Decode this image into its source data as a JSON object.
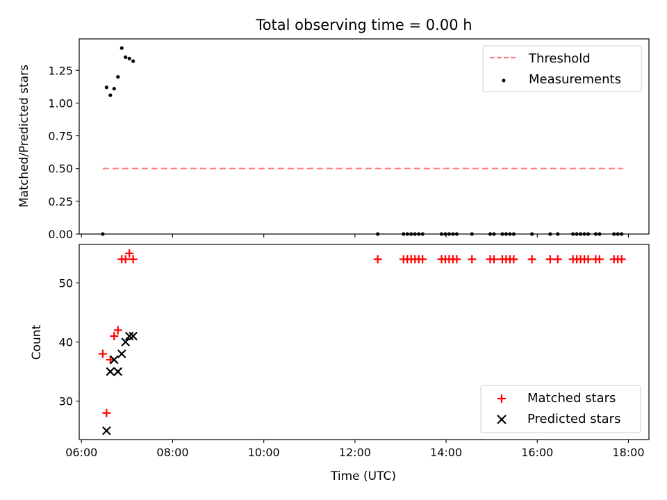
{
  "chart_data": [
    {
      "type": "scatter",
      "title": "Total observing time = 0.00 h",
      "ylabel": "Matched/Predicted stars",
      "ylim": [
        0,
        1.49
      ],
      "yticks": [
        "0.00",
        "0.25",
        "0.50",
        "0.75",
        "1.00",
        "1.25"
      ],
      "xlim_hours": [
        5.95,
        18.45
      ],
      "legend": {
        "position": "top-right",
        "entries": [
          "Threshold",
          "Measurements"
        ]
      },
      "series": [
        {
          "name": "Threshold",
          "style": "dashed-line",
          "color": "#ff7f7f",
          "x": [
            "06:28",
            "17:53"
          ],
          "y": [
            0.5,
            0.5
          ]
        },
        {
          "name": "Measurements",
          "style": "dot",
          "color": "#000000",
          "x": [
            "06:28",
            "06:33",
            "06:38",
            "06:43",
            "06:48",
            "06:53",
            "06:58",
            "07:03",
            "07:08",
            "12:30",
            "13:04",
            "13:09",
            "13:14",
            "13:19",
            "13:24",
            "13:29",
            "13:54",
            "13:59",
            "14:04",
            "14:09",
            "14:14",
            "14:34",
            "14:58",
            "15:03",
            "15:14",
            "15:19",
            "15:24",
            "15:29",
            "15:53",
            "16:17",
            "16:27",
            "16:47",
            "16:52",
            "16:57",
            "17:02",
            "17:07",
            "17:17",
            "17:22",
            "17:41",
            "17:46",
            "17:51"
          ],
          "y": [
            0.0,
            1.12,
            1.06,
            1.11,
            1.2,
            1.42,
            1.35,
            1.34,
            1.32,
            0,
            0,
            0,
            0,
            0,
            0,
            0,
            0,
            0,
            0,
            0,
            0,
            0,
            0,
            0,
            0,
            0,
            0,
            0,
            0,
            0,
            0,
            0,
            0,
            0,
            0,
            0,
            0,
            0,
            0,
            0,
            0
          ]
        }
      ]
    },
    {
      "type": "scatter",
      "xlabel": "Time (UTC)",
      "ylabel": "Count",
      "ylim": [
        23.5,
        56.5
      ],
      "yticks": [
        "30",
        "40",
        "50"
      ],
      "xticks": [
        "06:00",
        "08:00",
        "10:00",
        "12:00",
        "14:00",
        "16:00",
        "18:00"
      ],
      "xlim_hours": [
        5.95,
        18.45
      ],
      "legend": {
        "position": "bottom-right",
        "entries": [
          "Matched stars",
          "Predicted stars"
        ]
      },
      "series": [
        {
          "name": "Matched stars",
          "marker": "plus",
          "color": "#ff0000",
          "x": [
            "06:28",
            "06:33",
            "06:38",
            "06:43",
            "06:48",
            "06:53",
            "06:58",
            "07:03",
            "07:08",
            "12:30",
            "13:04",
            "13:09",
            "13:14",
            "13:19",
            "13:24",
            "13:29",
            "13:54",
            "13:59",
            "14:04",
            "14:09",
            "14:14",
            "14:34",
            "14:58",
            "15:03",
            "15:14",
            "15:19",
            "15:24",
            "15:29",
            "15:53",
            "16:17",
            "16:27",
            "16:47",
            "16:52",
            "16:57",
            "17:02",
            "17:07",
            "17:17",
            "17:22",
            "17:41",
            "17:46",
            "17:51"
          ],
          "y": [
            38,
            28,
            37,
            41,
            42,
            54,
            54,
            55,
            54,
            54,
            54,
            54,
            54,
            54,
            54,
            54,
            54,
            54,
            54,
            54,
            54,
            54,
            54,
            54,
            54,
            54,
            54,
            54,
            54,
            54,
            54,
            54,
            54,
            54,
            54,
            54,
            54,
            54,
            54,
            54,
            54
          ]
        },
        {
          "name": "Predicted stars",
          "marker": "x",
          "color": "#000000",
          "x": [
            "06:33",
            "06:38",
            "06:43",
            "06:48",
            "06:53",
            "06:58",
            "07:03",
            "07:08"
          ],
          "y": [
            25,
            35,
            37,
            35,
            38,
            40,
            41,
            41
          ]
        }
      ]
    }
  ]
}
